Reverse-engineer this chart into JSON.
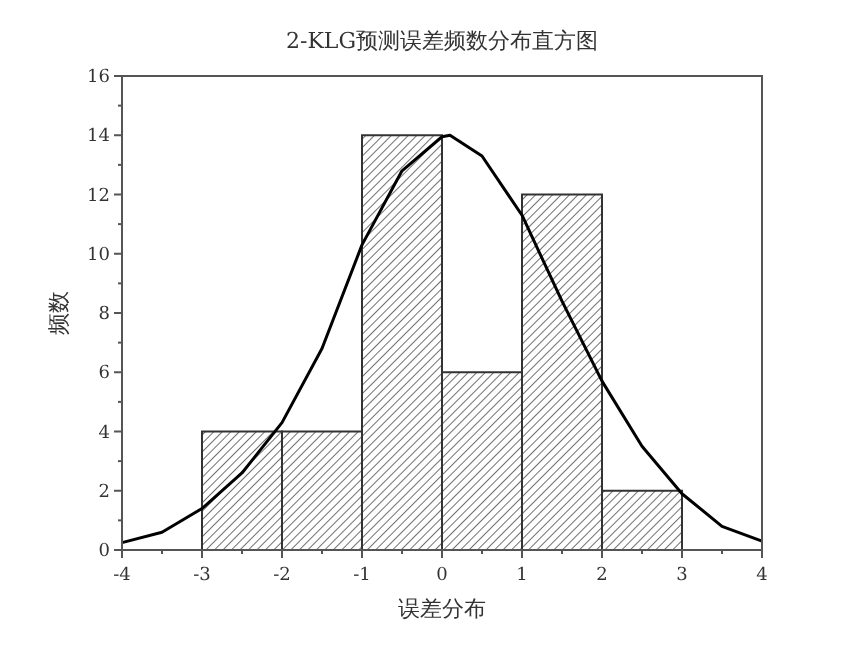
{
  "chart_data": {
    "type": "histogram",
    "title": "2-KLG预测误差频数分布直方图",
    "xlabel": "误差分布",
    "ylabel": "频数",
    "bins": [
      -3,
      -2,
      -1,
      0,
      1,
      2,
      3
    ],
    "values": [
      4,
      4,
      14,
      6,
      12,
      2
    ],
    "color": "#333333",
    "series": [
      {
        "type": "line",
        "color": "#000000",
        "x": [
          -4,
          -3.5,
          -3,
          -2.5,
          -2,
          -1.5,
          -1,
          -0.5,
          0,
          0.1,
          0.5,
          1,
          1.5,
          2,
          2.5,
          3,
          3.5,
          4
        ],
        "values": [
          0.25,
          0.6,
          1.4,
          2.6,
          4.3,
          6.8,
          10.3,
          12.8,
          13.95,
          14,
          13.3,
          11.3,
          8.4,
          5.7,
          3.5,
          1.9,
          0.8,
          0.3
        ]
      }
    ],
    "xlim": [
      -4,
      4
    ],
    "xticks": [
      -4,
      -3,
      -2,
      -1,
      0,
      1,
      2,
      3,
      4
    ],
    "ylim": [
      0,
      16
    ],
    "yticks": [
      0,
      2,
      4,
      6,
      8,
      10,
      12,
      14,
      16
    ]
  }
}
